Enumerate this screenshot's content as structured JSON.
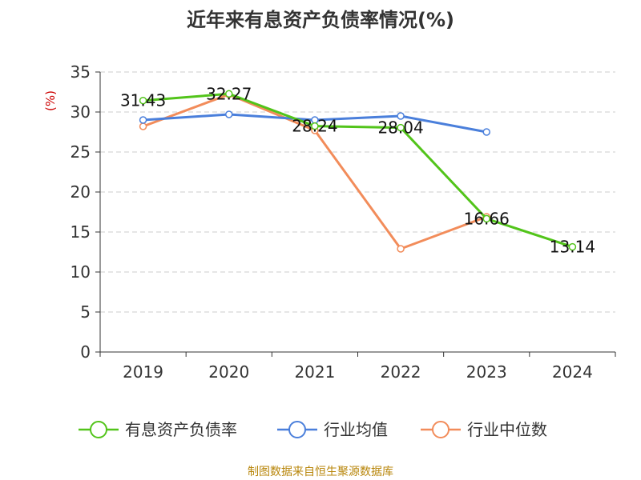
{
  "source_text": "制图数据来自恒生聚源数据库",
  "chart_data": {
    "type": "line",
    "title": "近年来有息资产负债率情况(%)",
    "ylabel": "(%)",
    "xlabel": "",
    "categories": [
      "2019",
      "2020",
      "2021",
      "2022",
      "2023",
      "2024"
    ],
    "ylim": [
      0,
      35
    ],
    "yticks": [
      0,
      5,
      10,
      15,
      20,
      25,
      30,
      35
    ],
    "grid": "horizontal-dashed",
    "legend_position": "bottom",
    "series": [
      {
        "name": "有息资产负债率",
        "color": "#52c41a",
        "values": [
          31.43,
          32.27,
          28.24,
          28.04,
          16.66,
          13.14
        ],
        "labels": [
          "31.43",
          "32.27",
          "28.24",
          "28.04",
          "16.66",
          "13.14"
        ]
      },
      {
        "name": "行业均值",
        "color": "#4a7fdb",
        "values": [
          29.0,
          29.7,
          29.0,
          29.5,
          27.5,
          null
        ]
      },
      {
        "name": "行业中位数",
        "color": "#f28c5a",
        "values": [
          28.2,
          32.2,
          27.7,
          12.9,
          16.9,
          null
        ]
      }
    ],
    "colors": {
      "axis": "#333333",
      "grid": "#cccccc",
      "ylabel": "#cc0000",
      "source": "#b8860b"
    }
  }
}
